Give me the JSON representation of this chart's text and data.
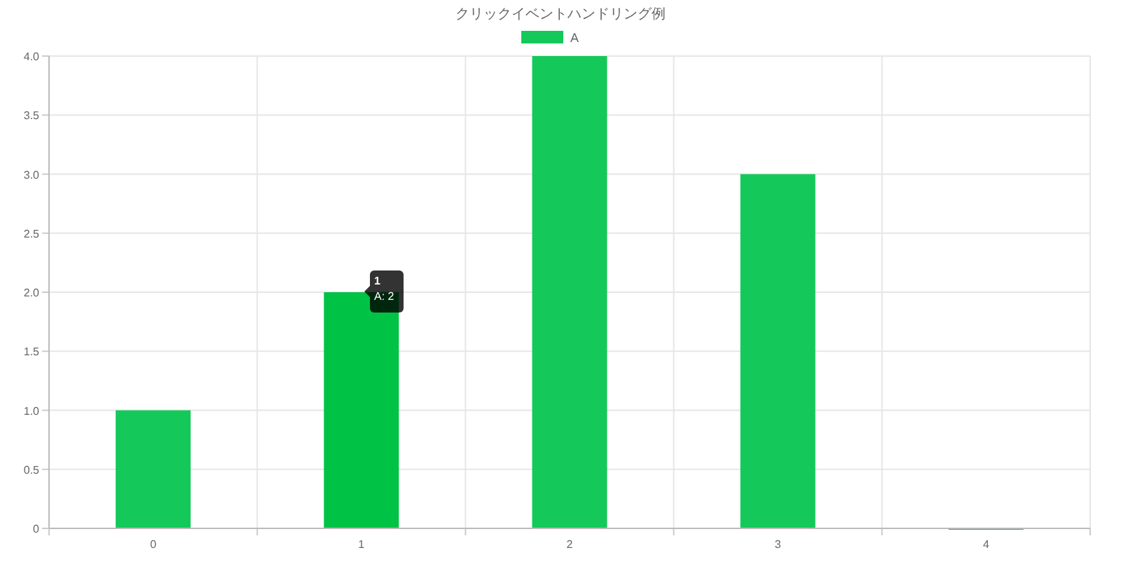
{
  "chart_data": {
    "type": "bar",
    "title": "クリックイベントハンドリング例",
    "categories": [
      "0",
      "1",
      "2",
      "3",
      "4"
    ],
    "series": [
      {
        "name": "A",
        "color": "#14c95a",
        "colors": [
          "#14c95a",
          "#00c244",
          "#14c95a",
          "#14c95a",
          "#14c95a"
        ],
        "values": [
          1,
          2,
          4,
          3,
          0
        ]
      }
    ],
    "ylim": [
      0,
      4
    ],
    "yticks": [
      0,
      0.5,
      {
        "value": 1,
        "label": "1.0"
      },
      1.5,
      {
        "value": 2,
        "label": "2.0"
      },
      2.5,
      {
        "value": 3,
        "label": "3.0"
      },
      3.5,
      {
        "value": 4,
        "label": "4.0"
      }
    ],
    "grid": true,
    "legend": "top",
    "annotations": [
      "1",
      "A: 2"
    ]
  }
}
